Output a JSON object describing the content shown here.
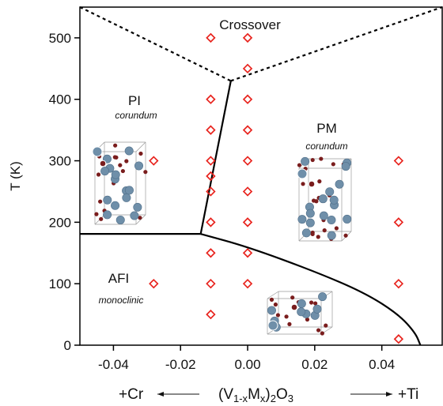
{
  "chart_data": {
    "type": "scatter",
    "title": "",
    "xlim": [
      -0.05,
      0.058
    ],
    "ylim": [
      0,
      550
    ],
    "x_ticks": [
      -0.04,
      -0.02,
      0.0,
      0.02,
      0.04
    ],
    "x_tick_labels": [
      "-0.04",
      "-0.02",
      "0.00",
      "0.02",
      "0.04"
    ],
    "y_ticks": [
      0,
      100,
      200,
      300,
      400,
      500
    ],
    "y_tick_labels": [
      "0",
      "100",
      "200",
      "300",
      "400",
      "500"
    ],
    "ylabel": "T (K)",
    "xlabel": {
      "left": "+Cr",
      "main_prefix": "(V",
      "main_sub1": "1-x",
      "main_mid": "M",
      "main_sub2": "x",
      "main_mid2": ")",
      "main_sub3": "2",
      "main_mid3": "O",
      "main_sub4": "3",
      "right": "+Ti"
    },
    "regions": {
      "crossover": "Crossover",
      "pi": "PI",
      "pi_struct": "corundum",
      "pm": "PM",
      "pm_struct": "corundum",
      "afi": "AFI",
      "afi_struct": "monoclinic"
    },
    "points": [
      {
        "x": -0.028,
        "y": 300
      },
      {
        "x": -0.028,
        "y": 100
      },
      {
        "x": -0.011,
        "y": 500
      },
      {
        "x": -0.011,
        "y": 400
      },
      {
        "x": -0.011,
        "y": 350
      },
      {
        "x": -0.011,
        "y": 300
      },
      {
        "x": -0.011,
        "y": 275
      },
      {
        "x": -0.011,
        "y": 250
      },
      {
        "x": -0.011,
        "y": 200
      },
      {
        "x": -0.011,
        "y": 150
      },
      {
        "x": -0.011,
        "y": 100
      },
      {
        "x": -0.011,
        "y": 50
      },
      {
        "x": 0.0,
        "y": 500
      },
      {
        "x": 0.0,
        "y": 450
      },
      {
        "x": 0.0,
        "y": 400
      },
      {
        "x": 0.0,
        "y": 350
      },
      {
        "x": 0.0,
        "y": 300
      },
      {
        "x": 0.0,
        "y": 250
      },
      {
        "x": 0.0,
        "y": 200
      },
      {
        "x": 0.0,
        "y": 150
      },
      {
        "x": 0.0,
        "y": 100
      },
      {
        "x": 0.045,
        "y": 300
      },
      {
        "x": 0.045,
        "y": 200
      },
      {
        "x": 0.045,
        "y": 100
      },
      {
        "x": 0.045,
        "y": 10
      }
    ],
    "boundaries": {
      "pi_afi": [
        [
          -0.05,
          181
        ],
        [
          -0.014,
          181
        ]
      ],
      "pi_pm": [
        [
          -0.014,
          181
        ],
        [
          -0.005,
          430
        ]
      ],
      "afi_pm": [
        [
          -0.014,
          181
        ],
        [
          0.0,
          160
        ],
        [
          0.02,
          120
        ],
        [
          0.035,
          85
        ],
        [
          0.045,
          50
        ],
        [
          0.05,
          20
        ],
        [
          0.0515,
          0
        ]
      ],
      "crossover_left": [
        [
          -0.05,
          550
        ],
        [
          -0.005,
          430
        ]
      ],
      "crossover_right": [
        [
          -0.005,
          430
        ],
        [
          0.058,
          550
        ]
      ]
    },
    "marker_color": "#e8231d",
    "line_color": "#000000",
    "atom_colors": {
      "v": "#6f8fa9",
      "o": "#7a1d1d"
    }
  }
}
